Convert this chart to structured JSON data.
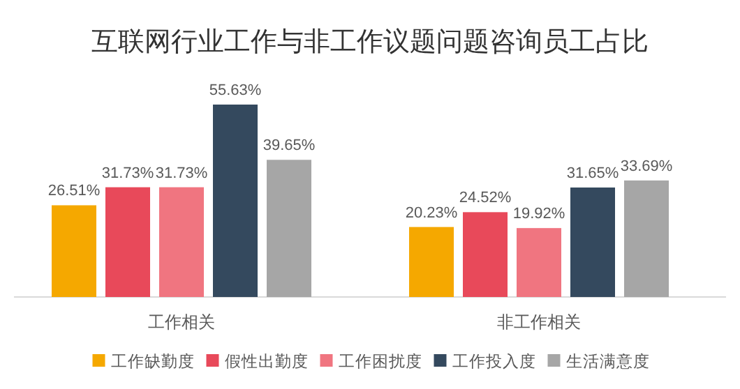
{
  "chart_data": {
    "type": "bar",
    "title": "互联网行业工作与非工作议题问题咨询员工占比",
    "categories": [
      "工作相关",
      "非工作相关"
    ],
    "series": [
      {
        "name": "工作缺勤度",
        "color": "#f5a800",
        "values": [
          26.51,
          20.23
        ],
        "value_labels": [
          "26.51%",
          "20.23%"
        ]
      },
      {
        "name": "假性出勤度",
        "color": "#e8495a",
        "values": [
          31.73,
          24.52
        ],
        "value_labels": [
          "31.73%",
          "24.52%"
        ]
      },
      {
        "name": "工作困扰度",
        "color": "#f07580",
        "values": [
          31.73,
          19.92
        ],
        "value_labels": [
          "31.73%",
          "19.92%"
        ]
      },
      {
        "name": "工作投入度",
        "color": "#34495e",
        "values": [
          55.63,
          31.65
        ],
        "value_labels": [
          "55.63%",
          "31.65%"
        ]
      },
      {
        "name": "生活满意度",
        "color": "#a6a6a6",
        "values": [
          39.65,
          33.69
        ],
        "value_labels": [
          "39.65%",
          "33.69%"
        ]
      }
    ],
    "legend": "bottom"
  }
}
